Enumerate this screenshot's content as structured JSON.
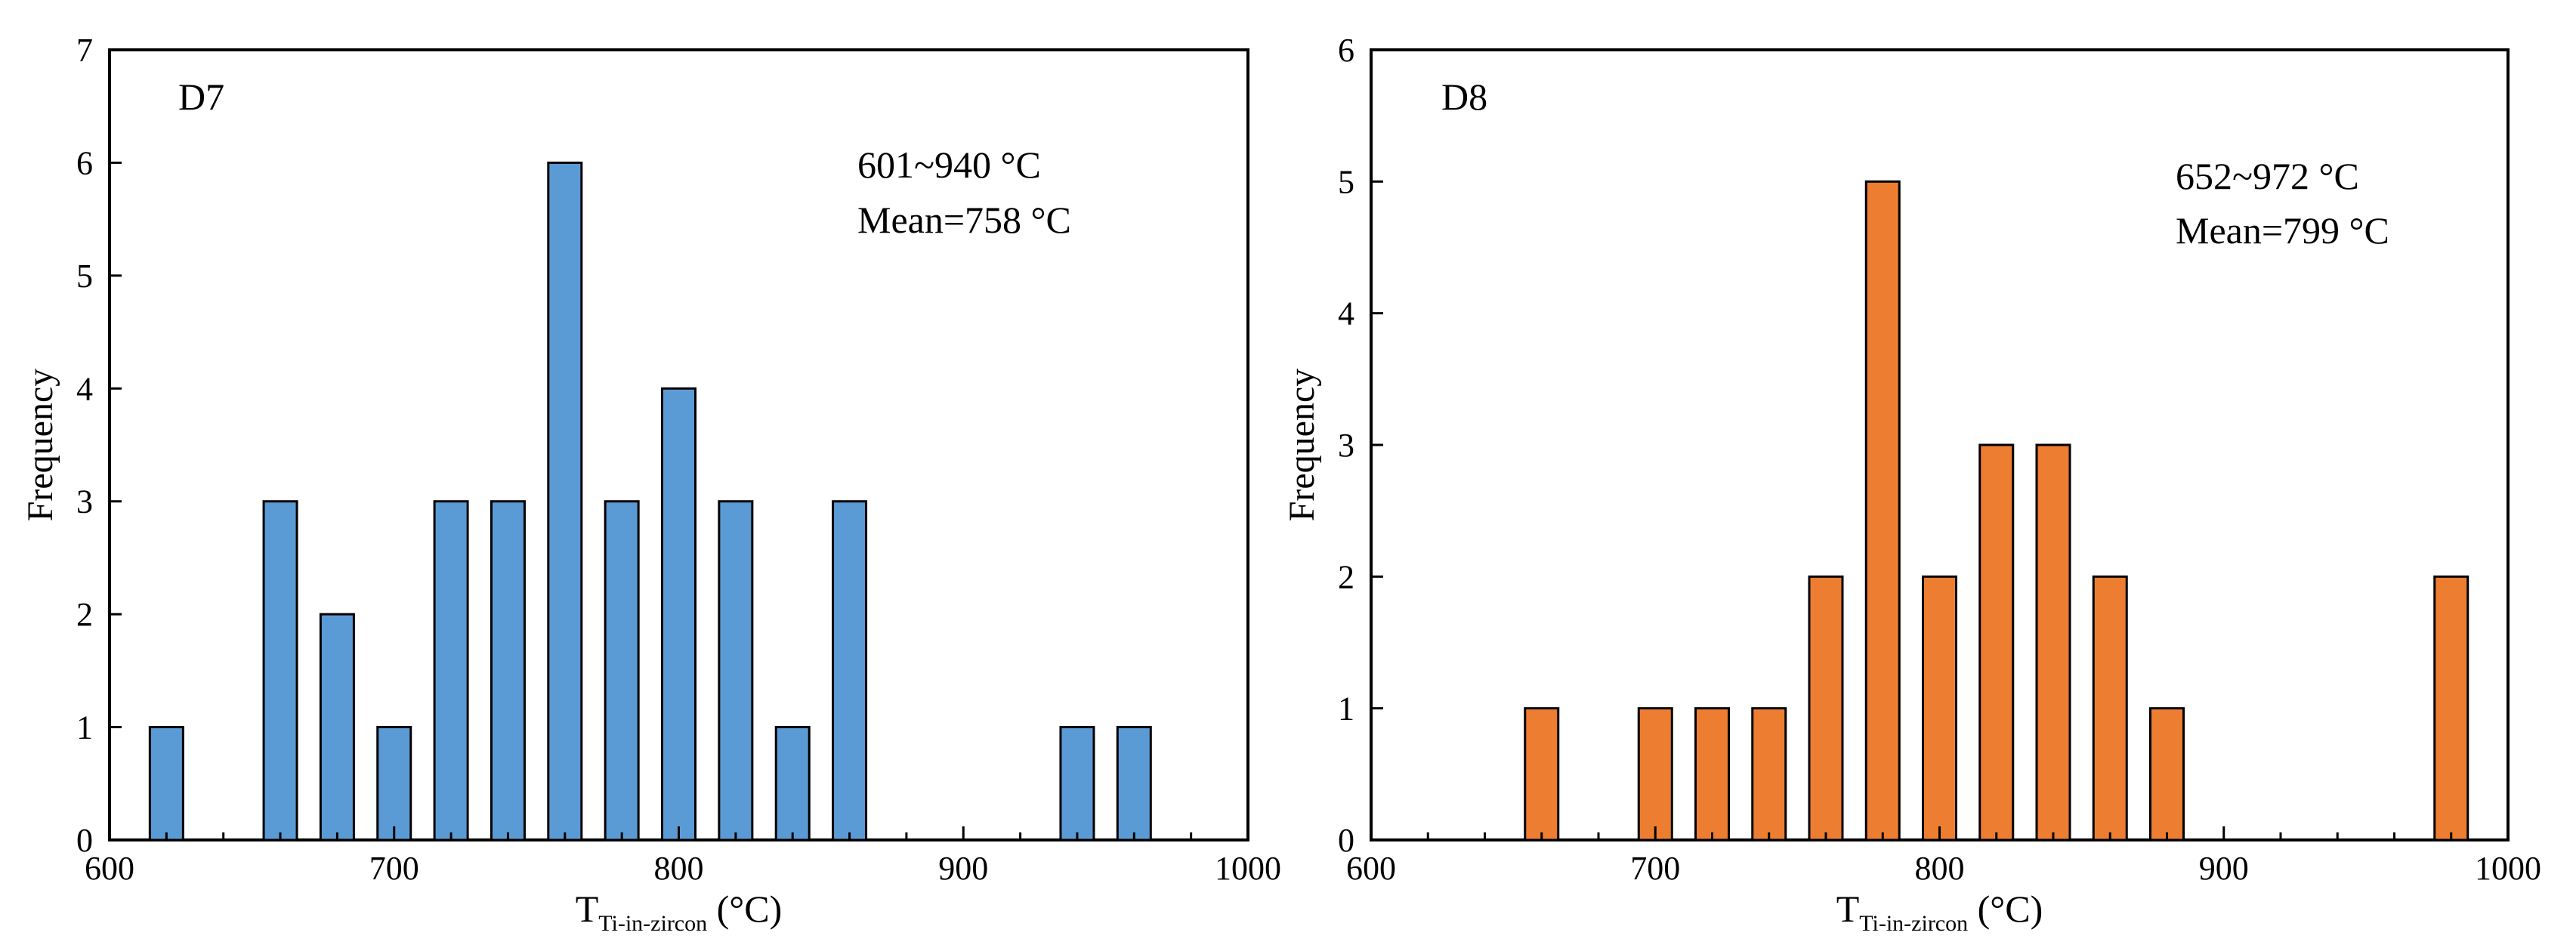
{
  "chart_data": [
    {
      "type": "bar",
      "panel_label": "D7",
      "x": [
        620,
        660,
        680,
        700,
        720,
        740,
        760,
        780,
        800,
        820,
        840,
        860,
        940,
        960
      ],
      "values": [
        1,
        3,
        2,
        1,
        3,
        3,
        6,
        3,
        4,
        3,
        1,
        3,
        1,
        1
      ],
      "bar_color": "#5b9bd5",
      "xlim": [
        600,
        1000
      ],
      "ylim": [
        0,
        7
      ],
      "x_ticks": [
        "600",
        "700",
        "800",
        "900",
        "1000"
      ],
      "y_ticks": [
        "0",
        "1",
        "2",
        "3",
        "4",
        "5",
        "6",
        "7"
      ],
      "ylabel": "Frequency",
      "xlabel_main": "T",
      "xlabel_sub": "Ti-in-zircon",
      "xlabel_unit": "(°C)",
      "annotation_range": "601~940 °C",
      "annotation_mean": "Mean=758 °C"
    },
    {
      "type": "bar",
      "panel_label": "D8",
      "x": [
        660,
        700,
        720,
        740,
        760,
        780,
        800,
        820,
        840,
        860,
        880,
        980
      ],
      "values": [
        1,
        1,
        1,
        1,
        2,
        5,
        2,
        3,
        3,
        2,
        1,
        2
      ],
      "bar_color": "#ed7d31",
      "xlim": [
        600,
        1000
      ],
      "ylim": [
        0,
        6
      ],
      "x_ticks": [
        "600",
        "700",
        "800",
        "900",
        "1000"
      ],
      "y_ticks": [
        "0",
        "1",
        "2",
        "3",
        "4",
        "5",
        "6"
      ],
      "ylabel": "Frequency",
      "xlabel_main": "T",
      "xlabel_sub": "Ti-in-zircon",
      "xlabel_unit": "(°C)",
      "annotation_range": "652~972 °C",
      "annotation_mean": "Mean=799 °C"
    }
  ]
}
